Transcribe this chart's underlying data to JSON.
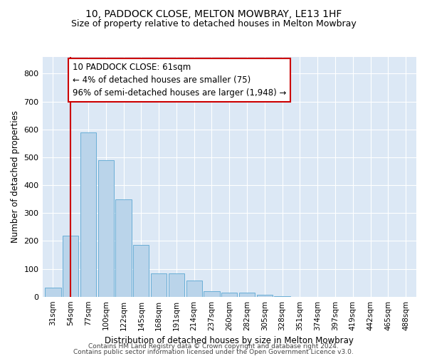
{
  "title1": "10, PADDOCK CLOSE, MELTON MOWBRAY, LE13 1HF",
  "title2": "Size of property relative to detached houses in Melton Mowbray",
  "xlabel": "Distribution of detached houses by size in Melton Mowbray",
  "ylabel": "Number of detached properties",
  "categories": [
    "31sqm",
    "54sqm",
    "77sqm",
    "100sqm",
    "122sqm",
    "145sqm",
    "168sqm",
    "191sqm",
    "214sqm",
    "237sqm",
    "260sqm",
    "282sqm",
    "305sqm",
    "328sqm",
    "351sqm",
    "374sqm",
    "397sqm",
    "419sqm",
    "442sqm",
    "465sqm",
    "488sqm"
  ],
  "values": [
    32,
    218,
    590,
    490,
    350,
    185,
    83,
    83,
    57,
    20,
    15,
    15,
    8,
    2,
    0,
    0,
    0,
    0,
    0,
    0,
    0
  ],
  "bar_color": "#bad4ea",
  "bar_edge_color": "#6aaed6",
  "vline_x": 1.0,
  "vline_color": "#cc0000",
  "annotation_text": "10 PADDOCK CLOSE: 61sqm\n← 4% of detached houses are smaller (75)\n96% of semi-detached houses are larger (1,948) →",
  "annotation_box_color": "#ffffff",
  "annotation_box_edge_color": "#cc0000",
  "footer1": "Contains HM Land Registry data © Crown copyright and database right 2024.",
  "footer2": "Contains public sector information licensed under the Open Government Licence v3.0.",
  "ylim": [
    0,
    860
  ],
  "yticks": [
    0,
    100,
    200,
    300,
    400,
    500,
    600,
    700,
    800
  ],
  "plot_bg_color": "#dce8f5",
  "title1_fontsize": 10,
  "title2_fontsize": 9,
  "grid_color": "#ffffff",
  "annotation_fontsize": 8.5,
  "xlabel_fontsize": 8.5,
  "ylabel_fontsize": 8.5
}
